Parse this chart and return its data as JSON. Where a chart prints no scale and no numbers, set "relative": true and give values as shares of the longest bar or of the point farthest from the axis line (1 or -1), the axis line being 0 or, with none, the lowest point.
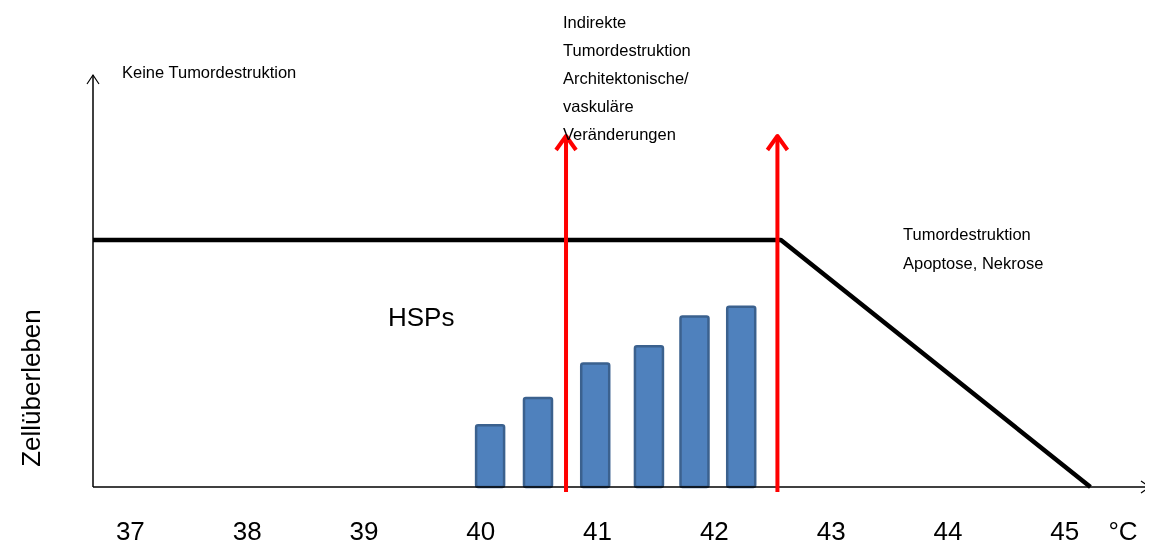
{
  "chart_data": {
    "type": "bar",
    "relative": true,
    "xlabel": "°C",
    "ylabel": "Zellüberleben",
    "xlim": [
      36.68,
      45.73
    ],
    "xticks": [
      37,
      38,
      39,
      40,
      41,
      42,
      43,
      44,
      45
    ],
    "series": [
      {
        "name": "HSPs",
        "color": "#4f81bd",
        "x": [
          40.08,
          40.49,
          40.98,
          41.44,
          41.83,
          42.23
        ],
        "values": [
          0.25,
          0.36,
          0.5,
          0.57,
          0.69,
          0.73
        ]
      },
      {
        "type": "line",
        "color": "#000000",
        "x": [
          36.68,
          42.57,
          45.22
        ],
        "values": [
          1,
          1,
          0
        ]
      }
    ],
    "ref_lines": [
      {
        "axis": "x",
        "value": 40.73,
        "color": "#ff0000"
      },
      {
        "axis": "x",
        "value": 42.54,
        "color": "#ff0000"
      }
    ],
    "annotations": [
      "Keine Tumordestruktion",
      "Indirekte\nTumordestruktion\nArchitektonische/\nvaskuläre\nVeränderungen",
      "Tumordestruktion\nApoptose, Nekrose"
    ],
    "grid": false
  }
}
